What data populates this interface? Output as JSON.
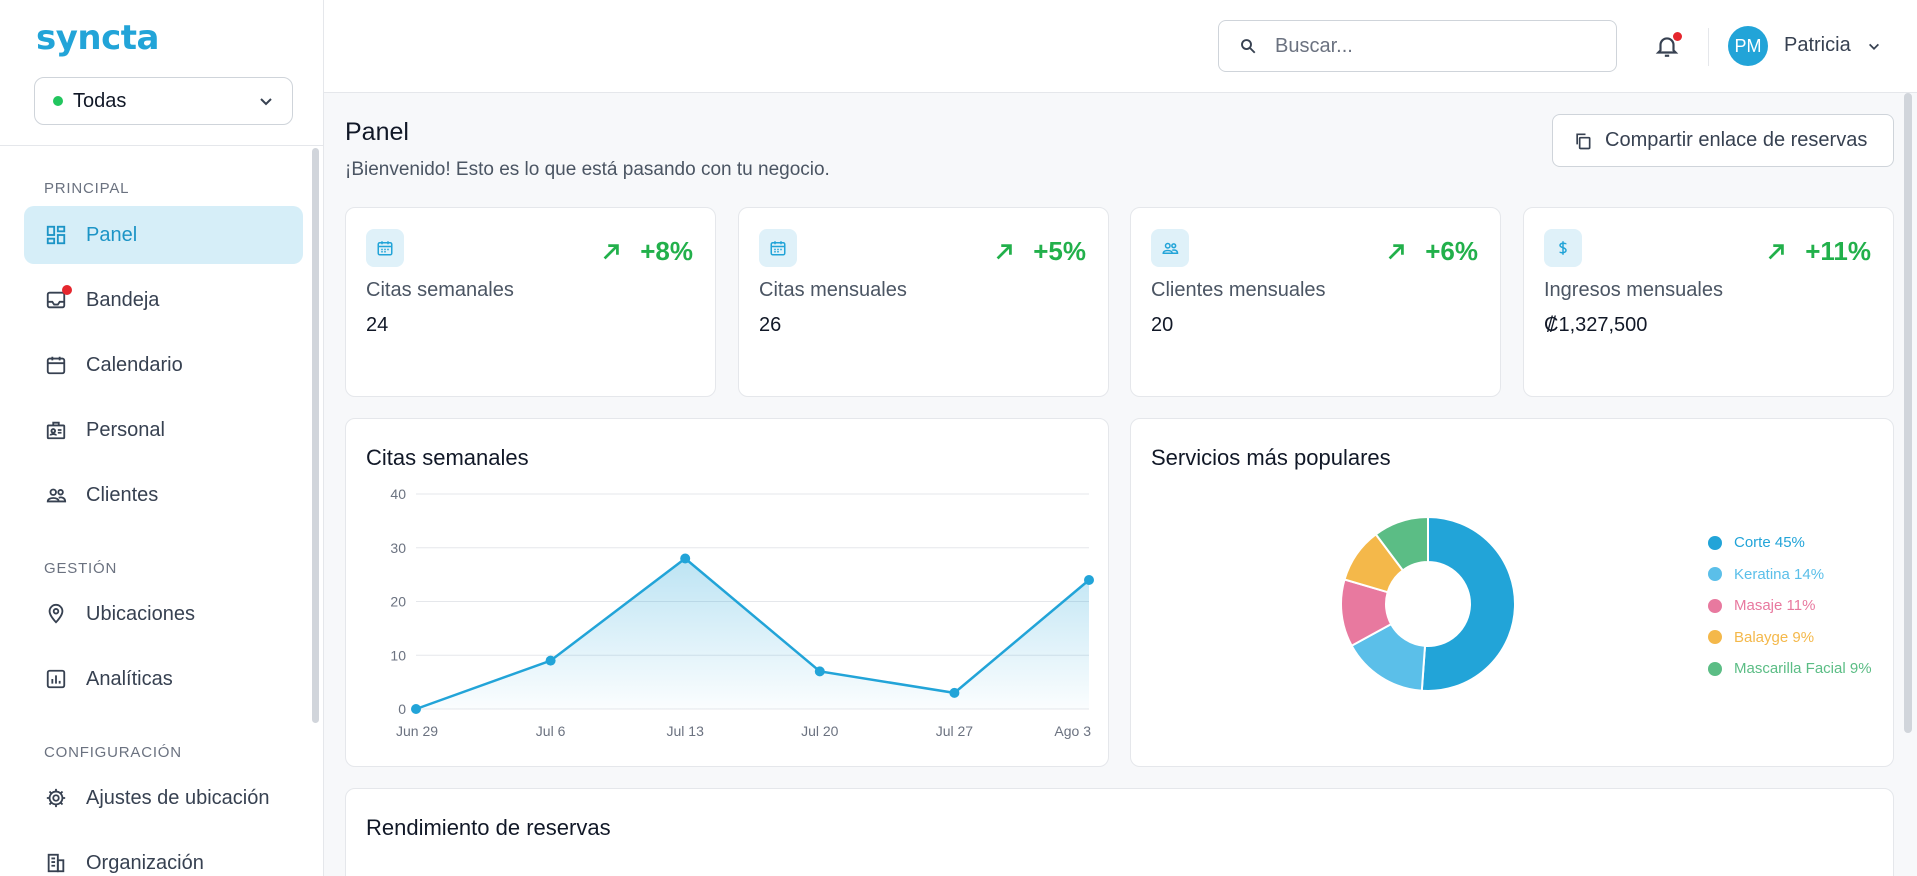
{
  "brand": {
    "logo": "syncta"
  },
  "location_selector": {
    "value": "Todas"
  },
  "sidebar": {
    "sections": [
      {
        "label": "PRINCIPAL"
      },
      {
        "label": "GESTIÓN"
      },
      {
        "label": "CONFIGURACIÓN"
      }
    ],
    "items": [
      {
        "label": "Panel",
        "icon": "dashboard-icon",
        "active": true
      },
      {
        "label": "Bandeja",
        "icon": "inbox-icon",
        "badge": true
      },
      {
        "label": "Calendario",
        "icon": "calendar-icon"
      },
      {
        "label": "Personal",
        "icon": "staff-badge-icon"
      },
      {
        "label": "Clientes",
        "icon": "people-icon"
      },
      {
        "label": "Ubicaciones",
        "icon": "location-pin-icon"
      },
      {
        "label": "Analíticas",
        "icon": "analytics-icon"
      },
      {
        "label": "Ajustes de ubicación",
        "icon": "gear-icon"
      },
      {
        "label": "Organización",
        "icon": "building-icon"
      }
    ]
  },
  "header": {
    "search_placeholder": "Buscar...",
    "user": {
      "initials": "PM",
      "name": "Patricia"
    }
  },
  "page": {
    "title": "Panel",
    "subtitle": "¡Bienvenido! Esto es lo que está pasando con tu negocio.",
    "share_button": "Compartir enlace de reservas"
  },
  "stats": [
    {
      "label": "Citas semanales",
      "value": "24",
      "trend": "+8%",
      "icon": "calendar-icon"
    },
    {
      "label": "Citas mensuales",
      "value": "26",
      "trend": "+5%",
      "icon": "calendar-icon"
    },
    {
      "label": "Clientes mensuales",
      "value": "20",
      "trend": "+6%",
      "icon": "people-icon"
    },
    {
      "label": "Ingresos mensuales",
      "value": "₡1,327,500",
      "trend": "+11%",
      "icon": "dollar-icon"
    }
  ],
  "colors": {
    "accent": "#22a4d8",
    "trend_up": "#22b04b",
    "badge": "#e5262d"
  },
  "weekly_chart_title": "Citas semanales",
  "popular_chart_title": "Servicios más populares",
  "performance": {
    "title": "Rendimiento de reservas"
  },
  "chart_data": [
    {
      "type": "area",
      "title": "Citas semanales",
      "categories": [
        "Jun 29",
        "Jul 6",
        "Jul 13",
        "Jul 20",
        "Jul 27",
        "Ago 3"
      ],
      "values": [
        0,
        9,
        28,
        7,
        3,
        24
      ],
      "ylim": [
        0,
        40
      ],
      "yticks": [
        0,
        10,
        20,
        30,
        40
      ],
      "grid": true,
      "color": "#22a4d8"
    },
    {
      "type": "pie",
      "title": "Servicios más populares",
      "donut": true,
      "legend_position": "right",
      "slices": [
        {
          "label": "Corte 45%",
          "value": 45,
          "color": "#22a4d8"
        },
        {
          "label": "Keratina 14%",
          "value": 14,
          "color": "#5bbfe9"
        },
        {
          "label": "Masaje 11%",
          "value": 11,
          "color": "#e8799f"
        },
        {
          "label": "Balayge 9%",
          "value": 9,
          "color": "#f4b84a"
        },
        {
          "label": "Mascarilla Facial 9%",
          "value": 9,
          "color": "#5bbd85"
        }
      ]
    }
  ]
}
